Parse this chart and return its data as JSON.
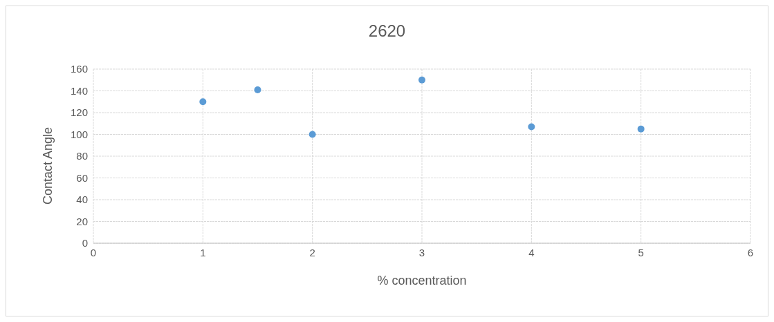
{
  "chart_data": {
    "type": "scatter",
    "title": "2620",
    "xlabel": "% concentration",
    "ylabel": "Contact Angle",
    "x": [
      1,
      1.5,
      2,
      3,
      4,
      5
    ],
    "series": [
      {
        "color": "#5b9bd5",
        "values": [
          130,
          141,
          100,
          150,
          107,
          105
        ]
      }
    ],
    "xlim": [
      0,
      6
    ],
    "xticks": [
      0,
      1,
      2,
      3,
      4,
      5,
      6
    ],
    "ylim": [
      0,
      160
    ],
    "yticks": [
      0,
      20,
      40,
      60,
      80,
      100,
      120,
      140,
      160
    ],
    "grid": true,
    "marker": "circle"
  }
}
